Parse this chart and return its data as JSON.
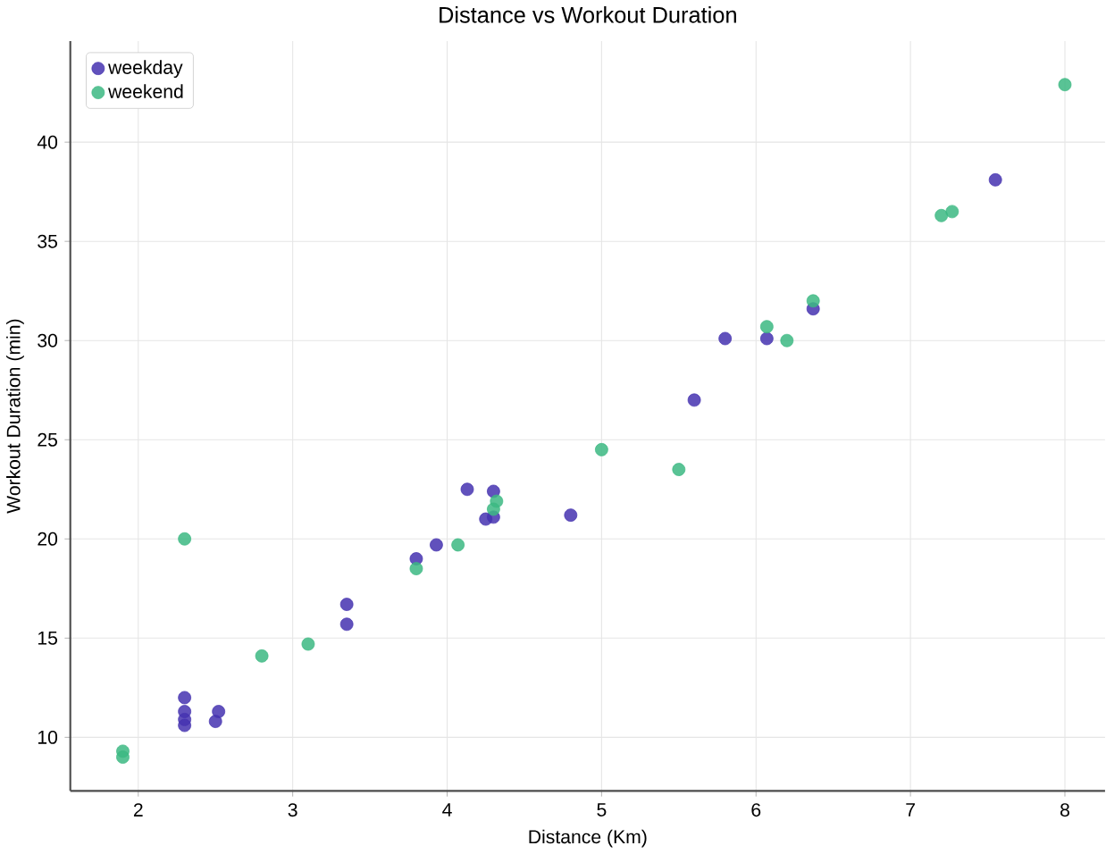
{
  "chart_data": {
    "type": "scatter",
    "title": "Distance vs Workout Duration",
    "xlabel": "Distance (Km)",
    "ylabel": "Workout Duration (min)",
    "xlim": [
      1.56,
      8.26
    ],
    "ylim": [
      7.3,
      45.1
    ],
    "xticks": [
      2,
      3,
      4,
      5,
      6,
      7,
      8
    ],
    "yticks": [
      10,
      15,
      20,
      25,
      30,
      35,
      40
    ],
    "grid": true,
    "legend": "top left",
    "marker": "circle",
    "series": [
      {
        "name": "weekday",
        "color": "#4533b0",
        "x": [
          2.3,
          2.3,
          2.3,
          2.3,
          2.5,
          2.52,
          3.35,
          3.35,
          3.8,
          3.93,
          4.13,
          4.25,
          4.3,
          4.3,
          4.8,
          5.6,
          5.8,
          6.07,
          6.37,
          7.55
        ],
        "values": [
          12,
          11.3,
          10.9,
          10.6,
          10.8,
          11.3,
          16.7,
          15.7,
          19,
          19.7,
          22.5,
          21,
          21.1,
          22.4,
          21.2,
          27,
          30.1,
          30.1,
          31.6,
          38.1
        ]
      },
      {
        "name": "weekend",
        "color": "#3cb882",
        "x": [
          1.9,
          1.9,
          2.3,
          2.8,
          3.1,
          3.8,
          4.07,
          4.32,
          4.3,
          5.0,
          5.5,
          6.07,
          6.2,
          6.37,
          7.2,
          7.27,
          8.0
        ],
        "values": [
          9.3,
          9.0,
          20,
          14.1,
          14.7,
          18.5,
          19.7,
          21.9,
          21.5,
          24.5,
          23.5,
          30.7,
          30,
          32,
          36.3,
          36.5,
          42.9
        ]
      }
    ]
  }
}
